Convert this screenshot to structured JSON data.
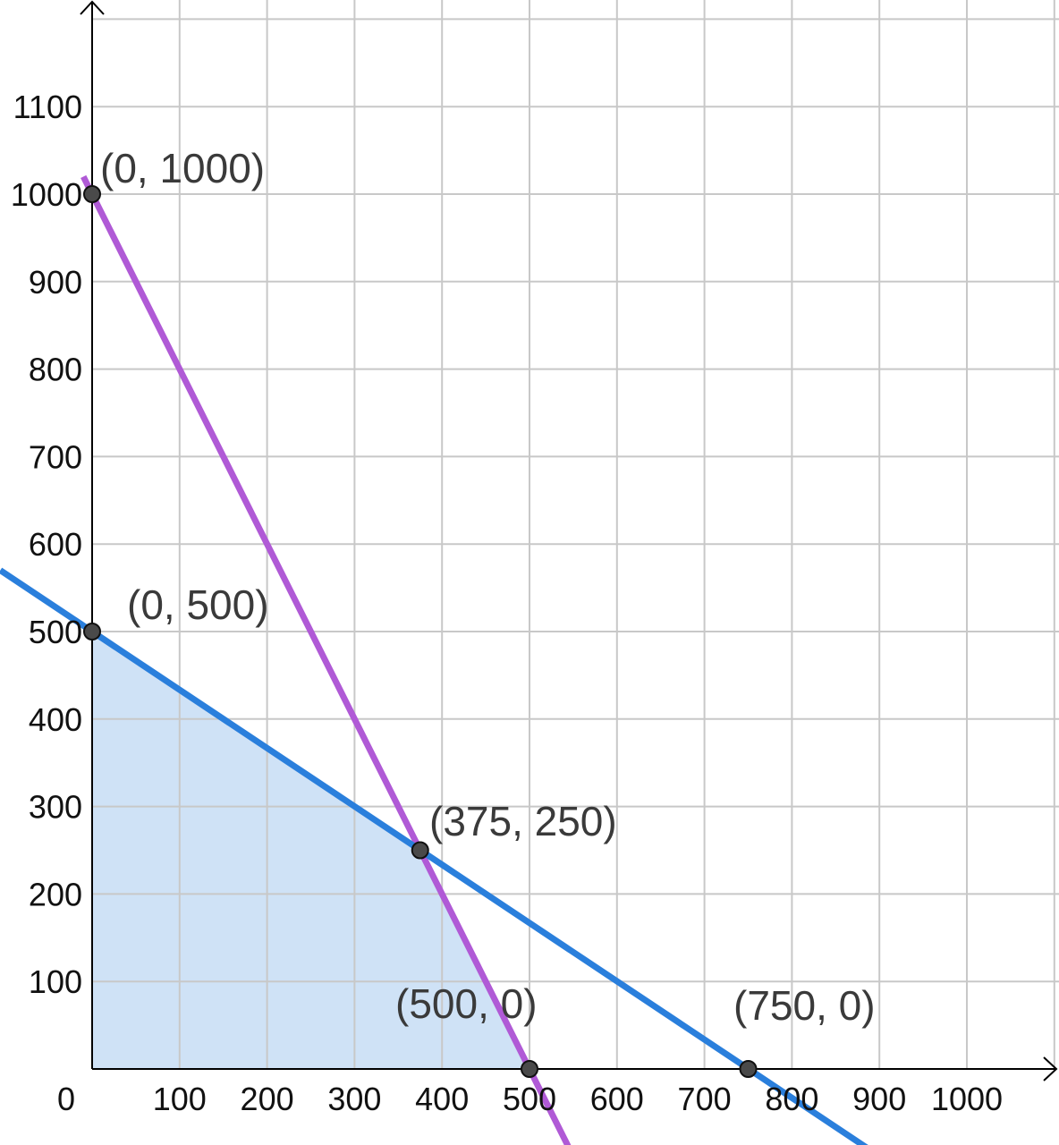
{
  "chart_data": {
    "type": "line",
    "title": "",
    "xlabel": "",
    "ylabel": "",
    "xlim": [
      0,
      1100
    ],
    "ylim": [
      0,
      1200
    ],
    "grid": true,
    "origin_label": "0",
    "x_ticks": [
      {
        "value": 100,
        "label": "100"
      },
      {
        "value": 200,
        "label": "200"
      },
      {
        "value": 300,
        "label": "300"
      },
      {
        "value": 400,
        "label": "400"
      },
      {
        "value": 500,
        "label": "500"
      },
      {
        "value": 600,
        "label": "600"
      },
      {
        "value": 700,
        "label": "700"
      },
      {
        "value": 800,
        "label": "800"
      },
      {
        "value": 900,
        "label": "900"
      },
      {
        "value": 1000,
        "label": "1000"
      }
    ],
    "y_ticks": [
      {
        "value": 100,
        "label": "100"
      },
      {
        "value": 200,
        "label": "200"
      },
      {
        "value": 300,
        "label": "300"
      },
      {
        "value": 400,
        "label": "400"
      },
      {
        "value": 500,
        "label": "500"
      },
      {
        "value": 600,
        "label": "600"
      },
      {
        "value": 700,
        "label": "700"
      },
      {
        "value": 800,
        "label": "800"
      },
      {
        "value": 900,
        "label": "900"
      },
      {
        "value": 1000,
        "label": "1000"
      },
      {
        "value": 1100,
        "label": "1100"
      }
    ],
    "series": [
      {
        "color": "#b05ad6",
        "x": [
          -10,
          545
        ],
        "y": [
          1020,
          -90
        ]
      },
      {
        "color": "#2a7fdc",
        "x": [
          -105,
          890
        ],
        "y": [
          570,
          -93
        ]
      }
    ],
    "feasible_region": {
      "color": "#cfe2f6",
      "x": [
        0,
        0,
        375,
        500
      ],
      "y": [
        0,
        500,
        250,
        0
      ]
    },
    "points": [
      {
        "x": 0,
        "y": 1000,
        "label": "(0, 1000)"
      },
      {
        "x": 0,
        "y": 500,
        "label": "(0, 500)"
      },
      {
        "x": 375,
        "y": 250,
        "label": "(375, 250)"
      },
      {
        "x": 500,
        "y": 0,
        "label": "(500, 0)"
      },
      {
        "x": 750,
        "y": 0,
        "label": "(750, 0)"
      }
    ]
  }
}
